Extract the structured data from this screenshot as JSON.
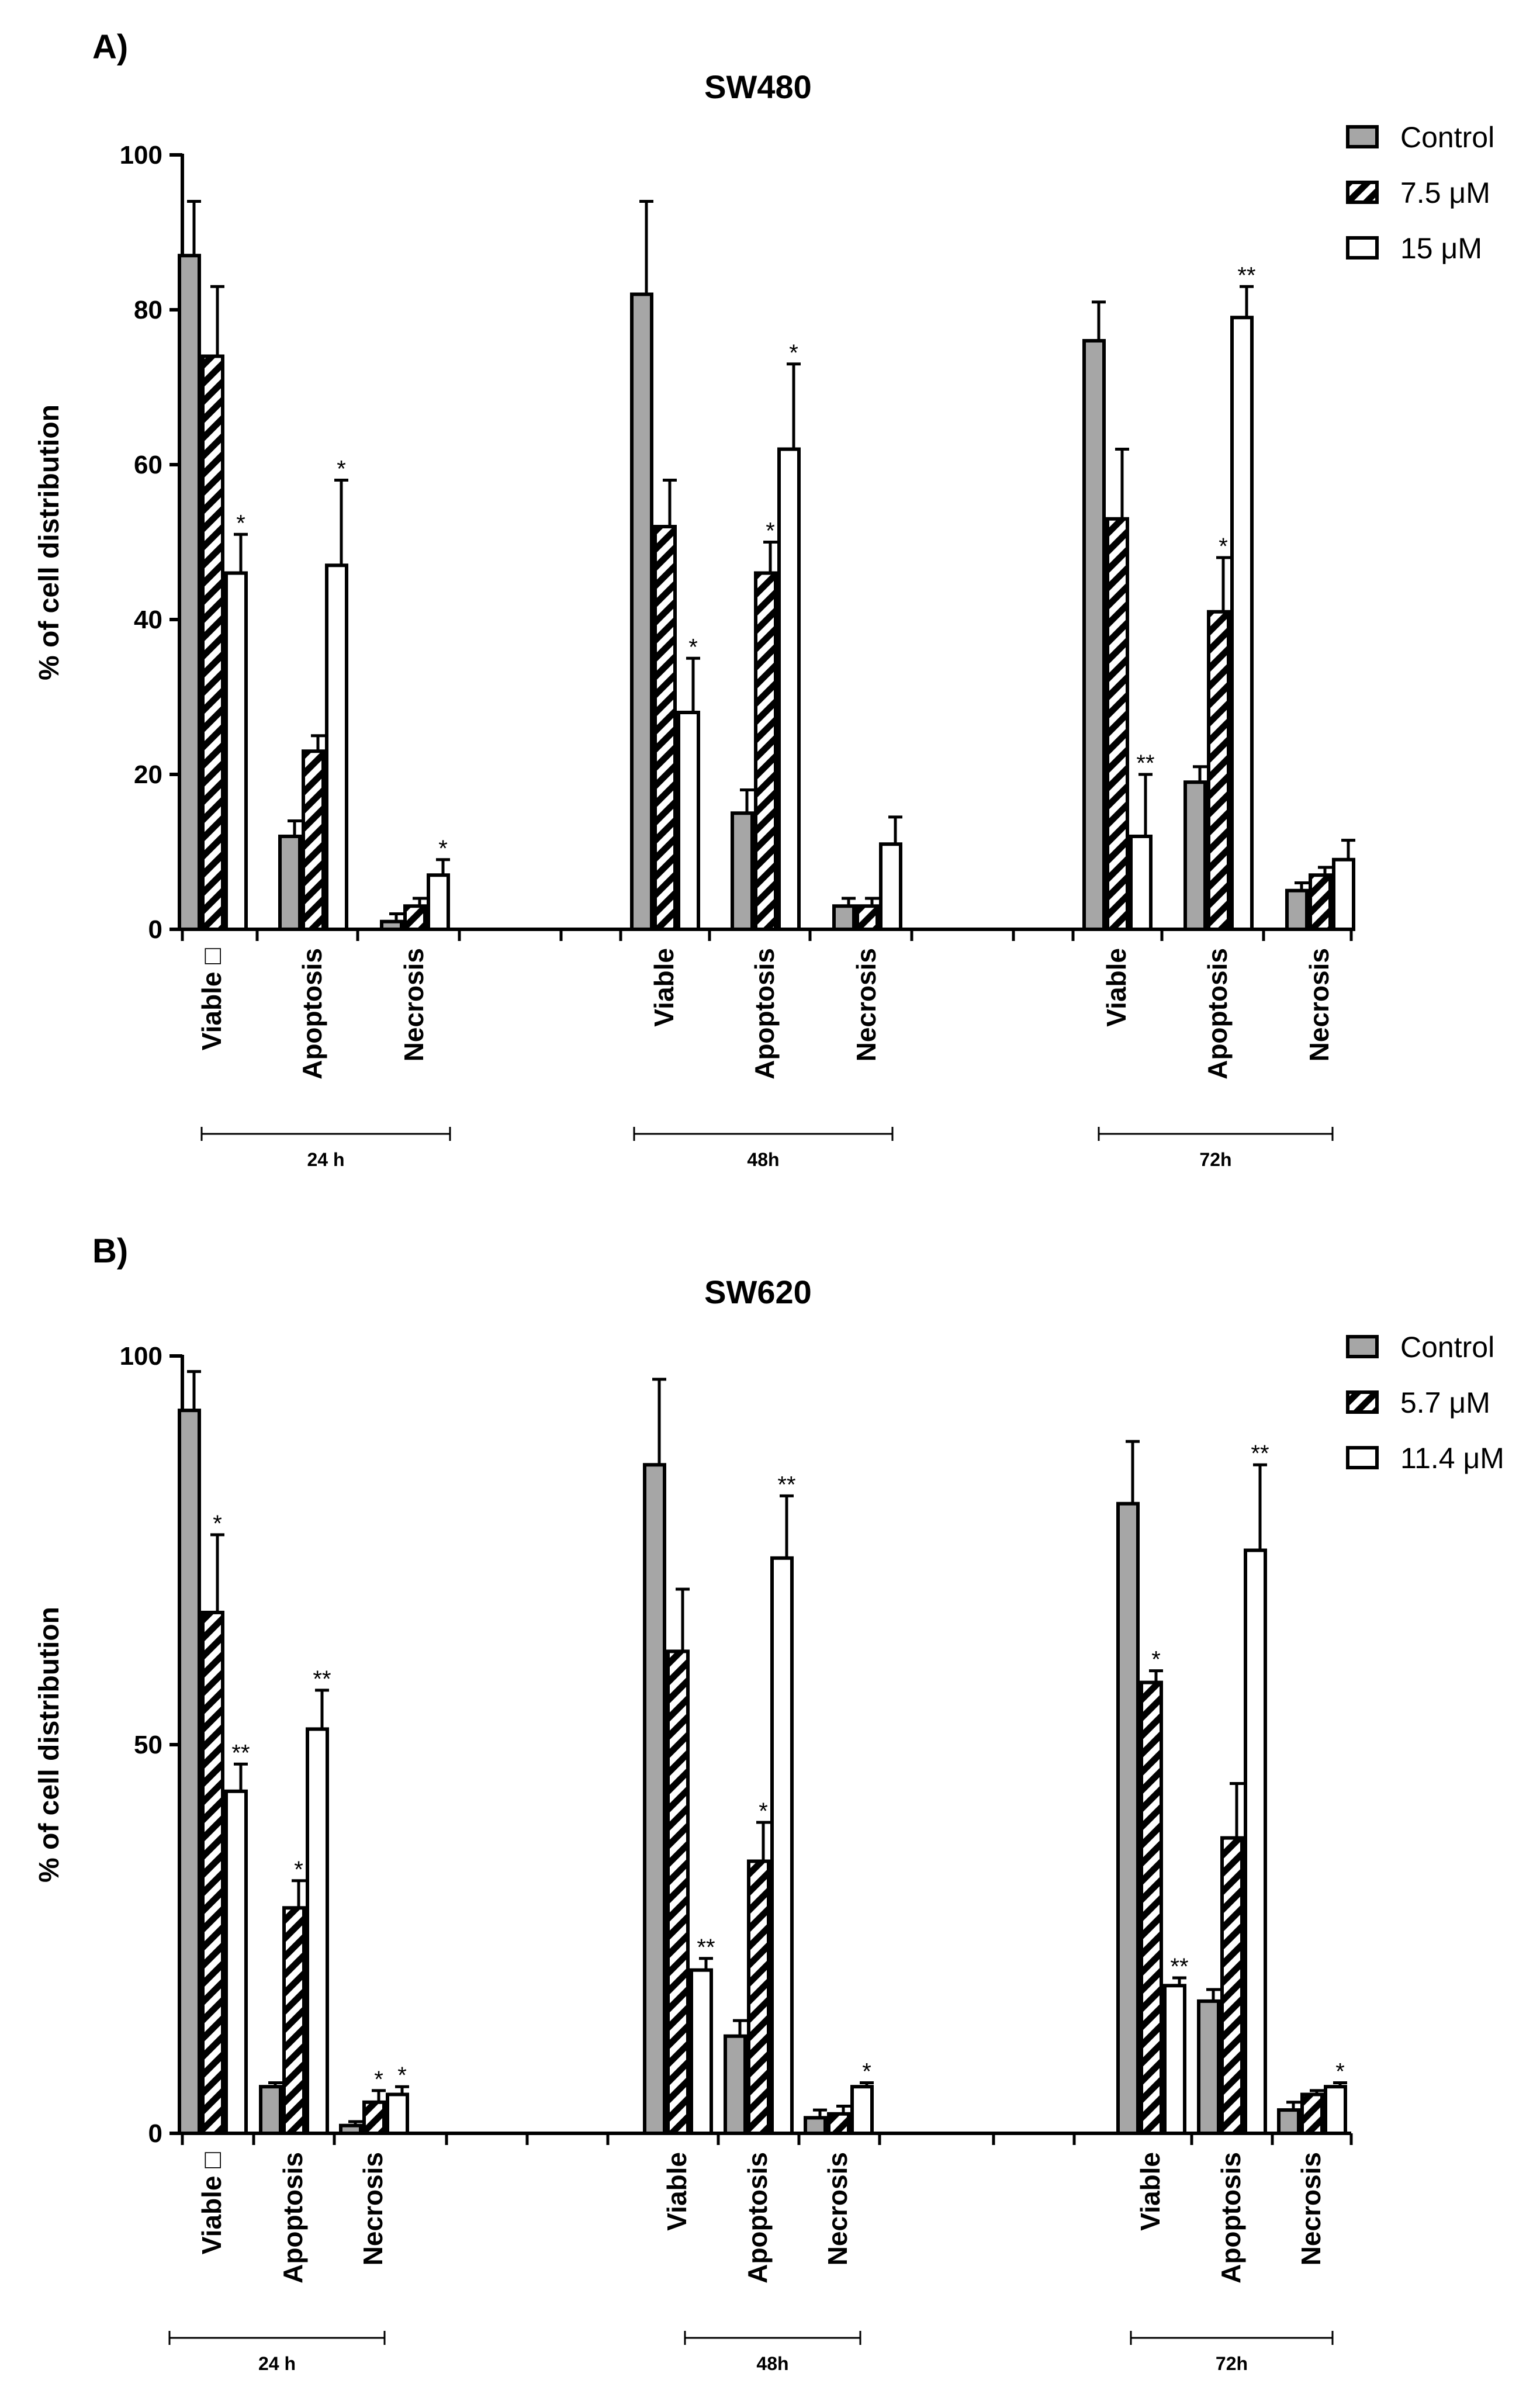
{
  "chart_data": [
    {
      "type": "bar",
      "panel_label": "A)",
      "title": "SW480",
      "ylabel": "% of cell distribution",
      "xlabel": "",
      "ylim": [
        0,
        100
      ],
      "yticks": [
        0,
        20,
        40,
        60,
        80,
        100
      ],
      "yticks_text": [
        "0",
        "20",
        "40",
        "60",
        "80",
        "100"
      ],
      "legend_position": "top-right",
      "grid": false,
      "categories": [
        "Viable □",
        "Apoptosis",
        "Necrosis",
        "Viable",
        "Apoptosis",
        "Necrosis",
        "Viable",
        "Apoptosis",
        "Necrosis"
      ],
      "groups": [
        {
          "label": "24 h",
          "categories": [
            0,
            1,
            2
          ]
        },
        {
          "label": "48h",
          "categories": [
            3,
            4,
            5
          ]
        },
        {
          "label": "72h",
          "categories": [
            6,
            7,
            8
          ]
        }
      ],
      "series": [
        {
          "name": "Control",
          "pattern": "gray",
          "values": [
            87,
            12,
            1,
            82,
            15,
            3,
            76,
            19,
            5
          ],
          "errors": [
            7,
            2,
            1,
            12,
            3,
            1,
            5,
            2,
            1
          ],
          "sig": [
            "",
            "",
            "",
            "",
            "",
            "",
            "",
            "",
            ""
          ]
        },
        {
          "name": "7.5 μM",
          "pattern": "hatched",
          "values": [
            74,
            23,
            3,
            52,
            46,
            3,
            53,
            41,
            7
          ],
          "errors": [
            9,
            2,
            1,
            6,
            4,
            1,
            9,
            7,
            1
          ],
          "sig": [
            "",
            "",
            "",
            "",
            "*",
            "",
            "",
            "*",
            ""
          ]
        },
        {
          "name": "15 μM",
          "pattern": "white",
          "values": [
            46,
            47,
            7,
            28,
            62,
            11,
            12,
            79,
            9
          ],
          "errors": [
            5,
            11,
            2,
            7,
            11,
            3.5,
            8,
            4,
            2.5
          ],
          "sig": [
            "*",
            "*",
            "*",
            "*",
            "*",
            "",
            "**",
            "**",
            ""
          ]
        }
      ]
    },
    {
      "type": "bar",
      "panel_label": "B)",
      "title": "SW620",
      "ylabel": "% of cell distribution",
      "xlabel": "",
      "ylim": [
        0,
        100
      ],
      "yticks": [
        0,
        50,
        100
      ],
      "yticks_text": [
        "0",
        "50",
        "100"
      ],
      "legend_position": "top-right",
      "grid": false,
      "categories": [
        "Viable □",
        "Apoptosis",
        "Necrosis",
        "Viable",
        "Apoptosis",
        "Necrosis",
        "Viable",
        "Apoptosis",
        "Necrosis"
      ],
      "groups": [
        {
          "label": "24 h",
          "categories": [
            0,
            1,
            2
          ]
        },
        {
          "label": "48h",
          "categories": [
            3,
            4,
            5
          ]
        },
        {
          "label": "72h",
          "categories": [
            6,
            7,
            8
          ]
        }
      ],
      "series": [
        {
          "name": "Control",
          "pattern": "gray",
          "values": [
            93,
            6,
            1,
            86,
            12.5,
            2,
            81,
            17,
            3
          ],
          "errors": [
            5,
            0.5,
            0.5,
            11,
            2,
            1,
            8,
            1.5,
            1
          ],
          "sig": [
            "",
            "",
            "",
            "",
            "",
            "",
            "",
            "",
            ""
          ]
        },
        {
          "name": "5.7 μM",
          "pattern": "hatched",
          "values": [
            67,
            29,
            4,
            62,
            35,
            2.5,
            58,
            38,
            5
          ],
          "errors": [
            10,
            3.5,
            1.5,
            8,
            5,
            1,
            1.5,
            7,
            0.5
          ],
          "sig": [
            "*",
            "*",
            "*",
            "",
            "*",
            "",
            "*",
            "",
            ""
          ]
        },
        {
          "name": "11.4 μM",
          "pattern": "white",
          "values": [
            44,
            52,
            5,
            21,
            74,
            6,
            19,
            75,
            6
          ],
          "errors": [
            3.5,
            5,
            1,
            1.5,
            8,
            0.5,
            1,
            11,
            0.5
          ],
          "sig": [
            "**",
            "**",
            "*",
            "**",
            "**",
            "*",
            "**",
            "**",
            "*"
          ]
        }
      ]
    }
  ]
}
